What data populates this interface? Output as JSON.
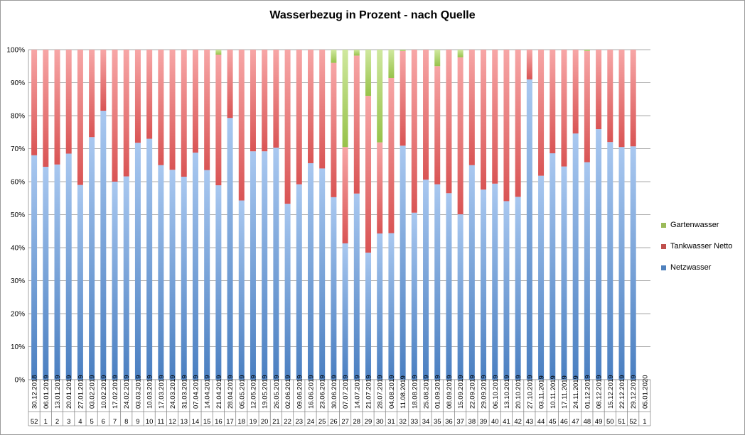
{
  "chart_data": {
    "type": "bar",
    "stacked": true,
    "title": "Wasserbezug in Prozent - nach Quelle",
    "xlabel": "",
    "ylabel": "",
    "ylim": [
      0,
      100
    ],
    "y_ticks": [
      "0%",
      "10%",
      "20%",
      "30%",
      "40%",
      "50%",
      "60%",
      "70%",
      "80%",
      "90%",
      "100%"
    ],
    "grid": true,
    "legend_position": "right",
    "categories": [
      "30.12.2018",
      "06.01.2019",
      "13.01.2019",
      "20.01.2019",
      "27.01.2019",
      "03.02.2019",
      "10.02.2019",
      "17.02.2019",
      "24.02.2019",
      "03.03.2019",
      "10.03.2019",
      "17.03.2019",
      "24.03.2019",
      "31.03.2019",
      "07.04.2019",
      "14.04.2019",
      "21.04.2019",
      "28.04.2019",
      "05.05.2019",
      "12.05.2019",
      "19.05.2019",
      "26.05.2019",
      "02.06.2019",
      "09.06.2019",
      "16.06.2019",
      "23.06.2019",
      "30.06.2019",
      "07.07.2019",
      "14.07.2019",
      "21.07.2019",
      "28.07.2019",
      "04.08.2019",
      "11.08.2019",
      "18.08.2019",
      "25.08.2019",
      "01.09.2019",
      "08.09.2019",
      "15.09.2019",
      "22.09.2019",
      "29.09.2019",
      "06.10.2019",
      "13.10.2019",
      "20.10.2019",
      "27.10.2019",
      "03.11.2019",
      "10.11.2019",
      "17.11.2019",
      "24.11.2019",
      "01.12.2019",
      "08.12.2019",
      "15.12.2019",
      "22.12.2019",
      "29.12.2019",
      "05.01.2020"
    ],
    "weeks": [
      "52",
      "1",
      "2",
      "3",
      "4",
      "5",
      "6",
      "7",
      "8",
      "9",
      "10",
      "11",
      "12",
      "13",
      "14",
      "15",
      "16",
      "17",
      "18",
      "19",
      "20",
      "21",
      "22",
      "23",
      "24",
      "25",
      "26",
      "27",
      "28",
      "29",
      "30",
      "31",
      "32",
      "33",
      "34",
      "35",
      "36",
      "37",
      "38",
      "39",
      "40",
      "41",
      "42",
      "43",
      "44",
      "45",
      "46",
      "47",
      "48",
      "49",
      "50",
      "51",
      "52",
      "1"
    ],
    "series": [
      {
        "name": "Netzwasser",
        "color": "#4f81bd",
        "values": [
          68,
          64.5,
          65.2,
          68.5,
          59,
          73.5,
          81.5,
          60,
          61.6,
          71.8,
          73,
          65,
          63.6,
          61.5,
          68.8,
          63.5,
          58.9,
          79.3,
          54.3,
          69.2,
          69.2,
          70.3,
          53.3,
          59.2,
          65.6,
          64,
          55.3,
          41.3,
          56.4,
          38.5,
          44.3,
          44.4,
          70.9,
          50.6,
          60.6,
          59.2,
          56.5,
          50.1,
          65,
          57.6,
          59.4,
          54.1,
          55.4,
          91,
          61.8,
          68.6,
          64.6,
          74.6,
          65.9,
          75.9,
          72,
          70.5,
          70.7,
          0
        ]
      },
      {
        "name": "Tankwasser Netto",
        "color": "#c0504d",
        "values": [
          32,
          35.5,
          34.8,
          31.5,
          41,
          26.5,
          18.5,
          40,
          38.4,
          28.2,
          27,
          35,
          36.4,
          38.5,
          31.2,
          36.5,
          39.6,
          20.7,
          45.7,
          30.8,
          30.8,
          29.7,
          46.7,
          40.8,
          34.4,
          36,
          40.7,
          29.2,
          41.8,
          47.5,
          27.6,
          47,
          28.7,
          49.4,
          39.4,
          35.8,
          43.5,
          47.6,
          35,
          42.4,
          40.6,
          45.9,
          44.6,
          9,
          38.2,
          31.4,
          35.4,
          25.4,
          33.7,
          24.1,
          28,
          29.5,
          29.3,
          0
        ]
      },
      {
        "name": "Gartenwasser",
        "color": "#9bbb59",
        "values": [
          0,
          0,
          0,
          0,
          0,
          0,
          0,
          0,
          0,
          0,
          0,
          0,
          0,
          0,
          0,
          0,
          1.5,
          0,
          0,
          0,
          0,
          0,
          0,
          0,
          0,
          0,
          4,
          29.5,
          1.8,
          14,
          28.1,
          8.6,
          0.4,
          0,
          0,
          5,
          0,
          2.3,
          0,
          0,
          0,
          0,
          0,
          0,
          0,
          0,
          0,
          0,
          0.4,
          0,
          0,
          0,
          0,
          0
        ]
      }
    ]
  }
}
